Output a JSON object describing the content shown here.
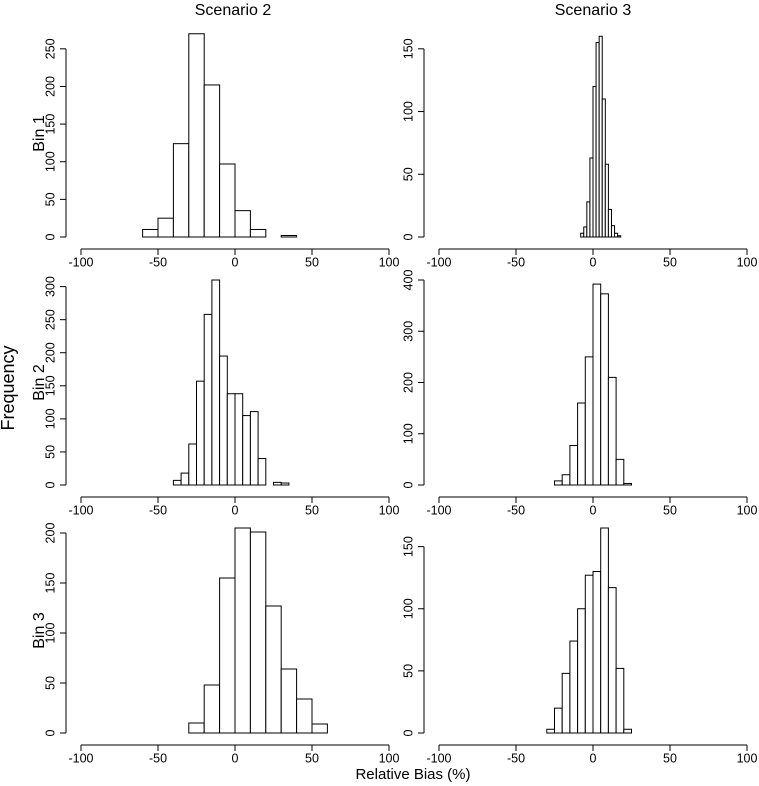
{
  "page": {
    "column_titles": [
      "Scenario 2",
      "Scenario 3"
    ],
    "row_titles": [
      "Bin 1",
      "Bin 2",
      "Bin 3"
    ],
    "xlabel": "Relative Bias (%)",
    "ylabel": "Frequency"
  },
  "chart_data": [
    {
      "type": "bar",
      "panel": "Scenario 2 / Bin 1",
      "xlim": [
        -100,
        100
      ],
      "xticks": [
        -100,
        -50,
        0,
        50,
        100
      ],
      "ylim": [
        0,
        275
      ],
      "yticks": [
        0,
        50,
        100,
        150,
        200,
        250
      ],
      "bins": [
        {
          "x0": -60,
          "x1": -50,
          "count": 10
        },
        {
          "x0": -50,
          "x1": -40,
          "count": 25
        },
        {
          "x0": -40,
          "x1": -30,
          "count": 124
        },
        {
          "x0": -30,
          "x1": -20,
          "count": 270
        },
        {
          "x0": -20,
          "x1": -10,
          "count": 202
        },
        {
          "x0": -10,
          "x1": 0,
          "count": 97
        },
        {
          "x0": 0,
          "x1": 10,
          "count": 35
        },
        {
          "x0": 10,
          "x1": 20,
          "count": 10
        },
        {
          "x0": 20,
          "x1": 30,
          "count": 0
        },
        {
          "x0": 30,
          "x1": 40,
          "count": 2
        }
      ]
    },
    {
      "type": "bar",
      "panel": "Scenario 3 / Bin 1",
      "xlim": [
        -100,
        100
      ],
      "xticks": [
        -100,
        -50,
        0,
        50,
        100
      ],
      "ylim": [
        0,
        165
      ],
      "yticks": [
        0,
        50,
        100,
        150
      ],
      "bins": [
        {
          "x0": -8,
          "x1": -6,
          "count": 3
        },
        {
          "x0": -6,
          "x1": -4,
          "count": 8
        },
        {
          "x0": -4,
          "x1": -2,
          "count": 28
        },
        {
          "x0": -2,
          "x1": 0,
          "count": 63
        },
        {
          "x0": 0,
          "x1": 2,
          "count": 120
        },
        {
          "x0": 2,
          "x1": 4,
          "count": 155
        },
        {
          "x0": 4,
          "x1": 6,
          "count": 160
        },
        {
          "x0": 6,
          "x1": 8,
          "count": 110
        },
        {
          "x0": 8,
          "x1": 10,
          "count": 58
        },
        {
          "x0": 10,
          "x1": 12,
          "count": 22
        },
        {
          "x0": 12,
          "x1": 14,
          "count": 9
        },
        {
          "x0": 14,
          "x1": 16,
          "count": 3
        },
        {
          "x0": 16,
          "x1": 18,
          "count": 1
        }
      ]
    },
    {
      "type": "bar",
      "panel": "Scenario 2 / Bin 2",
      "xlim": [
        -100,
        100
      ],
      "xticks": [
        -100,
        -50,
        0,
        50,
        100
      ],
      "ylim": [
        0,
        310
      ],
      "yticks": [
        0,
        50,
        100,
        150,
        200,
        250,
        300
      ],
      "bins": [
        {
          "x0": -40,
          "x1": -35,
          "count": 7
        },
        {
          "x0": -35,
          "x1": -30,
          "count": 18
        },
        {
          "x0": -30,
          "x1": -25,
          "count": 62
        },
        {
          "x0": -25,
          "x1": -20,
          "count": 157
        },
        {
          "x0": -20,
          "x1": -15,
          "count": 258
        },
        {
          "x0": -15,
          "x1": -10,
          "count": 310
        },
        {
          "x0": -10,
          "x1": -5,
          "count": 195
        },
        {
          "x0": -5,
          "x1": 0,
          "count": 138
        },
        {
          "x0": 0,
          "x1": 5,
          "count": 138
        },
        {
          "x0": 5,
          "x1": 10,
          "count": 105
        },
        {
          "x0": 10,
          "x1": 15,
          "count": 111
        },
        {
          "x0": 15,
          "x1": 20,
          "count": 40
        },
        {
          "x0": 20,
          "x1": 25,
          "count": 0
        },
        {
          "x0": 25,
          "x1": 30,
          "count": 4
        },
        {
          "x0": 30,
          "x1": 35,
          "count": 3
        }
      ]
    },
    {
      "type": "bar",
      "panel": "Scenario 3 / Bin 2",
      "xlim": [
        -100,
        100
      ],
      "xticks": [
        -100,
        -50,
        0,
        50,
        100
      ],
      "ylim": [
        0,
        400
      ],
      "yticks": [
        0,
        100,
        200,
        300,
        400
      ],
      "bins": [
        {
          "x0": -25,
          "x1": -20,
          "count": 8
        },
        {
          "x0": -20,
          "x1": -15,
          "count": 20
        },
        {
          "x0": -15,
          "x1": -10,
          "count": 77
        },
        {
          "x0": -10,
          "x1": -5,
          "count": 160
        },
        {
          "x0": -5,
          "x1": 0,
          "count": 250
        },
        {
          "x0": 0,
          "x1": 5,
          "count": 392
        },
        {
          "x0": 5,
          "x1": 10,
          "count": 373
        },
        {
          "x0": 10,
          "x1": 15,
          "count": 210
        },
        {
          "x0": 15,
          "x1": 20,
          "count": 50
        },
        {
          "x0": 20,
          "x1": 25,
          "count": 3
        }
      ]
    },
    {
      "type": "bar",
      "panel": "Scenario 2 / Bin 3",
      "xlim": [
        -100,
        100
      ],
      "xticks": [
        -100,
        -50,
        0,
        50,
        100
      ],
      "ylim": [
        0,
        205
      ],
      "yticks": [
        0,
        50,
        100,
        150,
        200
      ],
      "bins": [
        {
          "x0": -30,
          "x1": -20,
          "count": 10
        },
        {
          "x0": -20,
          "x1": -10,
          "count": 48
        },
        {
          "x0": -10,
          "x1": 0,
          "count": 155
        },
        {
          "x0": 0,
          "x1": 10,
          "count": 205
        },
        {
          "x0": 10,
          "x1": 20,
          "count": 201
        },
        {
          "x0": 20,
          "x1": 30,
          "count": 127
        },
        {
          "x0": 30,
          "x1": 40,
          "count": 64
        },
        {
          "x0": 40,
          "x1": 50,
          "count": 34
        },
        {
          "x0": 50,
          "x1": 60,
          "count": 9
        }
      ]
    },
    {
      "type": "bar",
      "panel": "Scenario 3 / Bin 3",
      "xlim": [
        -100,
        100
      ],
      "xticks": [
        -100,
        -50,
        0,
        50,
        100
      ],
      "ylim": [
        0,
        165
      ],
      "yticks": [
        0,
        50,
        100,
        150
      ],
      "bins": [
        {
          "x0": -30,
          "x1": -25,
          "count": 3
        },
        {
          "x0": -25,
          "x1": -20,
          "count": 20
        },
        {
          "x0": -20,
          "x1": -15,
          "count": 48
        },
        {
          "x0": -15,
          "x1": -10,
          "count": 74
        },
        {
          "x0": -10,
          "x1": -5,
          "count": 100
        },
        {
          "x0": -5,
          "x1": 0,
          "count": 127
        },
        {
          "x0": 0,
          "x1": 5,
          "count": 130
        },
        {
          "x0": 5,
          "x1": 10,
          "count": 165
        },
        {
          "x0": 10,
          "x1": 15,
          "count": 117
        },
        {
          "x0": 15,
          "x1": 20,
          "count": 52
        },
        {
          "x0": 20,
          "x1": 25,
          "count": 3
        }
      ]
    }
  ]
}
